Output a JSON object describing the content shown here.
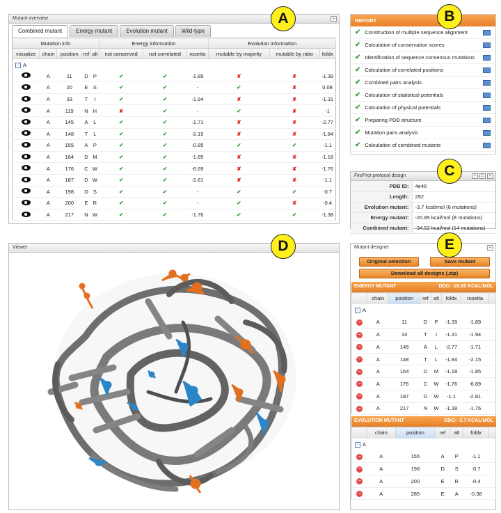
{
  "callouts": {
    "a": "A",
    "b": "B",
    "c": "C",
    "d": "D",
    "e": "E"
  },
  "overview": {
    "title": "Mutant overview",
    "tabs": [
      "Combined mutant",
      "Energy mutant",
      "Evolution mutant",
      "Wild-type"
    ],
    "groups": {
      "mutation": "Mutation info",
      "energy": "Energy information",
      "evolution": "Evolution information"
    },
    "columns": [
      "visualize",
      "chain",
      "position",
      "ref",
      "alt",
      "not conserved",
      "not correlated",
      "rosetta",
      "mutable by majority",
      "mutable by ratio",
      "foldx"
    ],
    "chain_group": "A",
    "rows": [
      [
        "A",
        "11",
        "D",
        "P",
        "yes",
        "yes",
        "-1.89",
        "no",
        "no",
        "-1.39"
      ],
      [
        "A",
        "20",
        "E",
        "S",
        "yes",
        "yes",
        "-",
        "yes",
        "no",
        "0.08"
      ],
      [
        "A",
        "33",
        "T",
        "I",
        "yes",
        "yes",
        "-1.94",
        "no",
        "no",
        "-1.31"
      ],
      [
        "A",
        "119",
        "N",
        "H",
        "no",
        "yes",
        "-",
        "yes",
        "no",
        "-1"
      ],
      [
        "A",
        "145",
        "A",
        "L",
        "yes",
        "yes",
        "-1.71",
        "no",
        "no",
        "-2.77"
      ],
      [
        "A",
        "148",
        "T",
        "L",
        "yes",
        "yes",
        "-2.15",
        "no",
        "no",
        "-1.84"
      ],
      [
        "A",
        "155",
        "A",
        "P",
        "yes",
        "yes",
        "-0.85",
        "yes",
        "yes",
        "-1.1"
      ],
      [
        "A",
        "164",
        "D",
        "M",
        "yes",
        "yes",
        "-1.85",
        "no",
        "no",
        "-1.18"
      ],
      [
        "A",
        "176",
        "C",
        "W",
        "yes",
        "yes",
        "-6.69",
        "no",
        "no",
        "-1.76"
      ],
      [
        "A",
        "187",
        "D",
        "W",
        "yes",
        "yes",
        "-2.81",
        "no",
        "no",
        "-1.1"
      ],
      [
        "A",
        "198",
        "D",
        "S",
        "yes",
        "yes",
        "-",
        "yes",
        "yes",
        "-0.7"
      ],
      [
        "A",
        "200",
        "E",
        "R",
        "yes",
        "yes",
        "-",
        "yes",
        "no",
        "-0.4"
      ],
      [
        "A",
        "217",
        "N",
        "W",
        "yes",
        "yes",
        "-1.76",
        "yes",
        "yes",
        "-1.38"
      ]
    ]
  },
  "report": {
    "title": "REPORT",
    "items": [
      "Construction of multiple sequence alignment",
      "Calculation of conservation scores",
      "Identification of sequence consensus mutations",
      "Calculation of correlated positions",
      "Combined pairs analysis",
      "Calculation of statistical potentials",
      "Calculation of physical potentials",
      "Preparing PDB structure",
      "Mutation pairs analysis",
      "Calculation of combined mutants"
    ]
  },
  "protocol": {
    "title": "FireProt protocol design",
    "rows": [
      [
        "PDB ID:",
        "4e46"
      ],
      [
        "Length:",
        "292"
      ],
      [
        "Evolution mutant:",
        "-3.7 kcal/mol (6 mutations)"
      ],
      [
        "Energy mutant:",
        "-20.85 kcal/mol (8 mutations)"
      ],
      [
        "Combined mutant:",
        "-34.52 kcal/mol (14 mutations)"
      ]
    ]
  },
  "viewer": {
    "title": "Viewer"
  },
  "designer": {
    "title": "Mutant designer",
    "btn_original": "Original selection",
    "btn_save": "Save mutant",
    "btn_download": "Download all designs (.zip)",
    "energy": {
      "title": "ENERGY MUTANT",
      "ddg": "DDG: -20.85 KCAL/MOL",
      "columns": [
        "chain",
        "position",
        "ref",
        "alt",
        "foldx",
        "rosetta"
      ],
      "rows": [
        [
          "A",
          "11",
          "D",
          "P",
          "-1.39",
          "-1.89"
        ],
        [
          "A",
          "33",
          "T",
          "I",
          "-1.31",
          "-1.94"
        ],
        [
          "A",
          "145",
          "A",
          "L",
          "-2.77",
          "-1.71"
        ],
        [
          "A",
          "148",
          "T",
          "L",
          "-1.84",
          "-2.15"
        ],
        [
          "A",
          "164",
          "D",
          "M",
          "-1.18",
          "-1.85"
        ],
        [
          "A",
          "176",
          "C",
          "W",
          "-1.76",
          "-6.69"
        ],
        [
          "A",
          "187",
          "D",
          "W",
          "-1.1",
          "-2.81"
        ],
        [
          "A",
          "217",
          "N",
          "W",
          "-1.38",
          "-1.76"
        ]
      ]
    },
    "evolution": {
      "title": "EVOLUTION MUTANT",
      "ddg": "DDG: -3.7 KCAL/MOL",
      "columns": [
        "chain",
        "position",
        "ref",
        "alt",
        "foldx"
      ],
      "rows": [
        [
          "A",
          "155",
          "A",
          "P",
          "-1.1"
        ],
        [
          "A",
          "198",
          "D",
          "S",
          "-0.7"
        ],
        [
          "A",
          "200",
          "E",
          "R",
          "-0.4"
        ],
        [
          "A",
          "285",
          "E",
          "A",
          "-0.38"
        ]
      ]
    }
  },
  "colors": {
    "accent": "#e8832a",
    "callout": "#ffef1a",
    "check": "#2a9a2a",
    "cross": "#dd2222",
    "protein": "#6f6f6f",
    "hydro_orange": "#e2701f",
    "hydro_blue": "#2a86c8"
  }
}
